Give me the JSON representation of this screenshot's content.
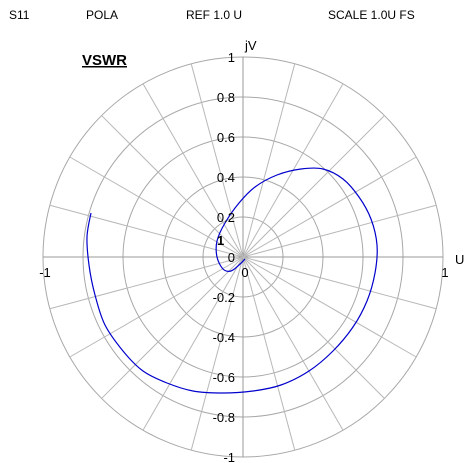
{
  "header": {
    "parameter": "S11",
    "format": "POLA",
    "reference": "REF 1.0 U",
    "scale": "SCALE 1.0U FS"
  },
  "chart_data": {
    "type": "line",
    "title": "VSWR",
    "xlabel": "U",
    "ylabel": "jV",
    "xlim": [
      -1,
      1
    ],
    "ylim": [
      -1,
      1
    ],
    "grid": true,
    "grid_rings": [
      0.2,
      0.4,
      0.6,
      0.8,
      1.0
    ],
    "grid_angle_step_deg": 15,
    "y_tick_labels": [
      "1",
      "0.8",
      "0.6",
      "0.4",
      "0.2",
      "0",
      "-0.2",
      "-0.4",
      "-0.6",
      "-0.8",
      "-1"
    ],
    "y_tick_values": [
      1,
      0.8,
      0.6,
      0.4,
      0.2,
      0,
      -0.2,
      -0.4,
      -0.6,
      -0.8,
      -1
    ],
    "x_tick_labels": [
      "-1",
      "0",
      "1"
    ],
    "x_tick_values": [
      -1,
      0,
      1
    ],
    "marker_label": "1",
    "marker_point": [
      -0.13,
      0.06
    ],
    "series": [
      {
        "color": "#0000cc",
        "points": [
          [
            0.01,
            -0.01
          ],
          [
            -0.02,
            -0.04
          ],
          [
            -0.06,
            -0.07
          ],
          [
            -0.1,
            -0.06
          ],
          [
            -0.13,
            0.0
          ],
          [
            -0.13,
            0.08
          ],
          [
            -0.09,
            0.17
          ],
          [
            -0.02,
            0.27
          ],
          [
            0.06,
            0.35
          ],
          [
            0.17,
            0.41
          ],
          [
            0.29,
            0.44
          ],
          [
            0.4,
            0.44
          ],
          [
            0.5,
            0.39
          ],
          [
            0.58,
            0.3
          ],
          [
            0.64,
            0.19
          ],
          [
            0.67,
            0.06
          ],
          [
            0.66,
            -0.08
          ],
          [
            0.62,
            -0.22
          ],
          [
            0.55,
            -0.35
          ],
          [
            0.45,
            -0.47
          ],
          [
            0.33,
            -0.57
          ],
          [
            0.19,
            -0.64
          ],
          [
            0.05,
            -0.67
          ],
          [
            -0.1,
            -0.68
          ],
          [
            -0.25,
            -0.67
          ],
          [
            -0.38,
            -0.63
          ],
          [
            -0.5,
            -0.57
          ],
          [
            -0.6,
            -0.47
          ],
          [
            -0.69,
            -0.34
          ],
          [
            -0.74,
            -0.19
          ],
          [
            -0.77,
            -0.04
          ],
          [
            -0.78,
            0.1
          ],
          [
            -0.76,
            0.22
          ]
        ]
      }
    ]
  }
}
